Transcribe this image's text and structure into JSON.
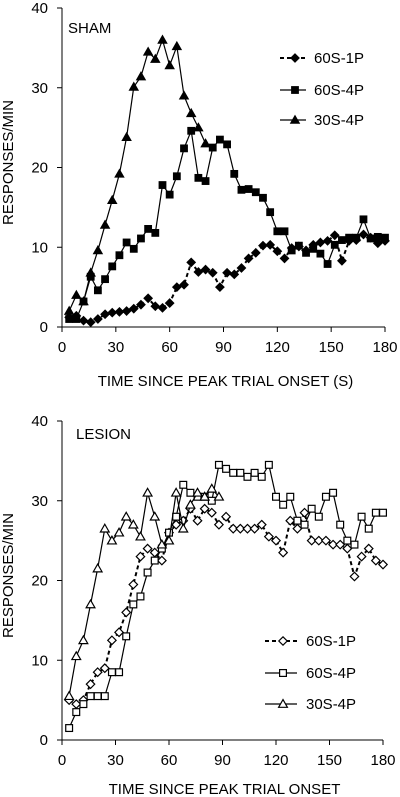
{
  "charts": [
    {
      "panel": "SHAM",
      "type": "line",
      "xlabel": "TIME SINCE PEAK TRIAL ONSET (S)",
      "ylabel": "RESPONSES/MIN",
      "xlim": [
        0,
        180
      ],
      "ylim": [
        0,
        40
      ],
      "xticks": [
        0,
        30,
        60,
        90,
        120,
        150,
        180
      ],
      "yticks": [
        0,
        10,
        20,
        30,
        40
      ],
      "legend": "top-right",
      "series": [
        {
          "name": "60S-1P",
          "marker": "diamond",
          "filled": true,
          "dash": true,
          "x": [
            4,
            8,
            12,
            16,
            20,
            24,
            28,
            32,
            36,
            40,
            44,
            48,
            52,
            56,
            60,
            64,
            68,
            72,
            76,
            80,
            84,
            88,
            92,
            96,
            100,
            104,
            108,
            112,
            116,
            120,
            124,
            128,
            132,
            136,
            140,
            144,
            148,
            152,
            156,
            160,
            164,
            168,
            172,
            176,
            180
          ],
          "y": [
            1.2,
            1.4,
            0.8,
            0.6,
            1.0,
            1.6,
            1.8,
            1.9,
            2.0,
            2.3,
            2.8,
            3.6,
            2.6,
            2.4,
            3.0,
            5.0,
            5.3,
            8.1,
            6.9,
            7.2,
            6.8,
            5.0,
            6.8,
            6.6,
            7.4,
            8.6,
            9.3,
            10.2,
            10.3,
            9.5,
            8.6,
            9.9,
            10.1,
            9.6,
            10.3,
            10.6,
            10.8,
            11.5,
            8.3,
            10.8,
            10.9,
            11.6,
            11.2,
            10.5,
            10.8
          ]
        },
        {
          "name": "60S-4P",
          "marker": "square",
          "filled": true,
          "dash": false,
          "x": [
            4,
            8,
            12,
            16,
            20,
            24,
            28,
            32,
            36,
            40,
            44,
            48,
            52,
            56,
            60,
            64,
            68,
            72,
            76,
            80,
            84,
            88,
            92,
            96,
            100,
            104,
            108,
            112,
            116,
            120,
            124,
            128,
            132,
            136,
            140,
            144,
            148,
            152,
            156,
            160,
            164,
            168,
            172,
            176,
            180
          ],
          "y": [
            1.0,
            1.0,
            3.2,
            6.3,
            4.6,
            6.0,
            7.6,
            9.0,
            10.6,
            9.8,
            11.1,
            12.3,
            11.8,
            17.8,
            16.6,
            18.9,
            22.4,
            24.6,
            18.7,
            18.3,
            22.5,
            23.5,
            22.9,
            19.2,
            17.2,
            17.3,
            16.9,
            16.2,
            14.4,
            12.0,
            12.0,
            9.6,
            10.2,
            9.3,
            9.8,
            9.2,
            7.9,
            10.3,
            10.9,
            11.2,
            11.2,
            13.5,
            11.1,
            11.3,
            11.2
          ]
        },
        {
          "name": "30S-4P",
          "marker": "triangle",
          "filled": true,
          "dash": false,
          "x": [
            4,
            8,
            12,
            16,
            20,
            24,
            28,
            32,
            36,
            40,
            44,
            48,
            52,
            56,
            60,
            64,
            68,
            72,
            76,
            80
          ],
          "y": [
            2.0,
            4.0,
            3.2,
            6.8,
            9.6,
            12.8,
            15.9,
            19.2,
            23.8,
            30.1,
            31.4,
            34.5,
            33.6,
            36.0,
            32.8,
            35.2,
            29.0,
            26.8,
            25.0,
            23.0
          ]
        }
      ]
    },
    {
      "panel": "LESION",
      "type": "line",
      "xlabel": "TIME SINCE PEAK TRIAL ONSET",
      "ylabel": "RESPONSES/MIN",
      "xlim": [
        0,
        180
      ],
      "ylim": [
        0,
        40
      ],
      "xticks": [
        0,
        30,
        60,
        90,
        120,
        150,
        180
      ],
      "yticks": [
        0,
        10,
        20,
        30,
        40
      ],
      "legend": "bottom-right",
      "series": [
        {
          "name": "60S-1P",
          "marker": "diamond",
          "filled": false,
          "dash": true,
          "x": [
            4,
            8,
            12,
            16,
            20,
            24,
            28,
            32,
            36,
            40,
            44,
            48,
            52,
            56,
            60,
            64,
            68,
            72,
            76,
            80,
            84,
            88,
            92,
            96,
            100,
            104,
            108,
            112,
            116,
            120,
            124,
            128,
            132,
            136,
            140,
            144,
            148,
            152,
            156,
            160,
            164,
            168,
            172,
            176,
            180
          ],
          "y": [
            5.0,
            4.5,
            5.0,
            7.0,
            8.5,
            9.0,
            12.5,
            13.5,
            16.0,
            19.5,
            23.0,
            24.0,
            23.5,
            22.5,
            26.0,
            27.0,
            27.5,
            29.0,
            27.5,
            29.0,
            28.5,
            27.0,
            28.0,
            26.5,
            26.5,
            26.5,
            26.5,
            27.0,
            25.5,
            25.0,
            23.5,
            27.5,
            26.5,
            28.5,
            25.0,
            25.0,
            25.0,
            24.5,
            24.5,
            24.0,
            20.5,
            23.0,
            24.0,
            22.5,
            22.0
          ]
        },
        {
          "name": "60S-4P",
          "marker": "square",
          "filled": false,
          "dash": false,
          "x": [
            4,
            8,
            12,
            16,
            20,
            24,
            28,
            32,
            36,
            40,
            44,
            48,
            52,
            56,
            60,
            64,
            68,
            72,
            76,
            80,
            84,
            88,
            92,
            96,
            100,
            104,
            108,
            112,
            116,
            120,
            124,
            128,
            132,
            136,
            140,
            144,
            148,
            152,
            156,
            160,
            164,
            168,
            172,
            176,
            180
          ],
          "y": [
            1.5,
            3.5,
            4.5,
            5.5,
            5.5,
            5.5,
            8.5,
            8.5,
            13.0,
            17.0,
            18.0,
            21.0,
            22.5,
            24.0,
            26.0,
            28.0,
            32.0,
            31.0,
            30.5,
            30.5,
            30.0,
            34.5,
            34.0,
            33.5,
            33.5,
            33.0,
            33.5,
            33.0,
            34.5,
            30.5,
            29.5,
            30.5,
            27.5,
            27.0,
            29.0,
            28.0,
            30.5,
            31.0,
            27.0,
            25.0,
            24.5,
            28.0,
            26.5,
            28.5,
            28.5
          ]
        },
        {
          "name": "30S-4P",
          "marker": "triangle",
          "filled": false,
          "dash": false,
          "x": [
            4,
            8,
            12,
            16,
            20,
            24,
            28,
            32,
            36,
            40,
            44,
            48,
            52,
            56,
            60,
            64,
            68,
            72,
            76,
            80,
            84,
            88
          ],
          "y": [
            5.5,
            10.5,
            12.5,
            17.0,
            21.5,
            26.5,
            25.0,
            26.0,
            28.0,
            27.0,
            25.5,
            31.0,
            28.0,
            24.5,
            25.0,
            31.0,
            26.5,
            29.5,
            31.0,
            30.5,
            31.5,
            30.5
          ]
        }
      ]
    }
  ]
}
